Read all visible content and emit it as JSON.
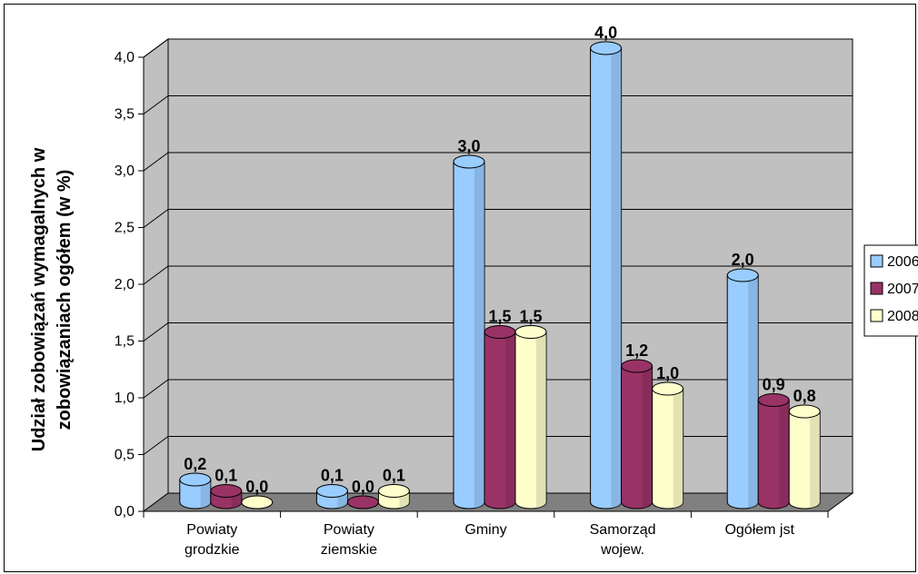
{
  "chart_data": {
    "type": "bar",
    "ylabel_line1": "Udział zobowiązań wymagalnych w",
    "ylabel_line2": "zobowiązaniach ogółem (w %)",
    "categories": [
      [
        "Powiaty",
        "grodzkie"
      ],
      [
        "Powiaty",
        "ziemskie"
      ],
      [
        "Gminy"
      ],
      [
        "Samorząd",
        "wojew."
      ],
      [
        "Ogółem jst"
      ]
    ],
    "series": [
      {
        "name": "2006",
        "color": "#99ccff",
        "values": [
          0.2,
          0.1,
          3.0,
          4.0,
          2.0
        ],
        "labels": [
          "0,2",
          "0,1",
          "3,0",
          "4,0",
          "2,0"
        ]
      },
      {
        "name": "2007",
        "color": "#993366",
        "values": [
          0.1,
          0.0,
          1.5,
          1.2,
          0.9
        ],
        "labels": [
          "0,1",
          "0,0",
          "1,5",
          "1,2",
          "0,9"
        ]
      },
      {
        "name": "2008",
        "color": "#ffffcc",
        "values": [
          0.0,
          0.1,
          1.5,
          1.0,
          0.8
        ],
        "labels": [
          "0,0",
          "0,1",
          "1,5",
          "1,0",
          "0,8"
        ]
      }
    ],
    "ylim": [
      0,
      4.0
    ],
    "yticks": [
      "0,0",
      "0,5",
      "1,0",
      "1,5",
      "2,0",
      "2,5",
      "3,0",
      "3,5",
      "4,0"
    ],
    "grid": true,
    "legend_placement": "right",
    "wall_color": "#c0c0c0",
    "floor_color": "#808080"
  }
}
